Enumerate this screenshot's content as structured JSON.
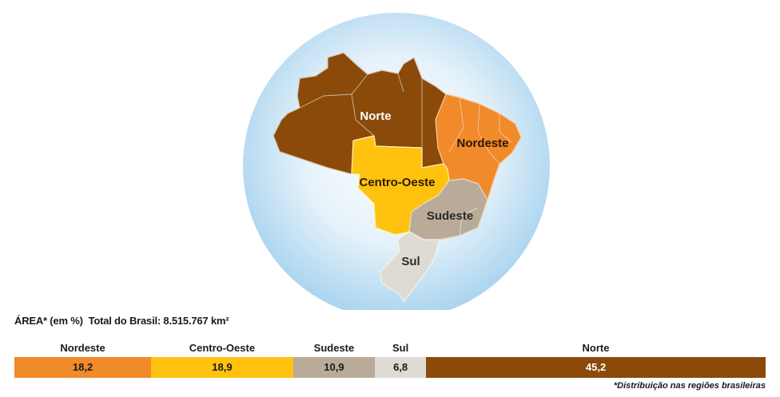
{
  "chart_data": {
    "type": "bar",
    "title": "ÁREA* (em %)",
    "subtitle": "Total do Brasil: 8.515.767 km²",
    "categories": [
      "Nordeste",
      "Centro-Oeste",
      "Sudeste",
      "Sul",
      "Norte"
    ],
    "values": [
      18.2,
      18.9,
      10.9,
      6.8,
      45.2
    ],
    "value_labels": [
      "18,2",
      "18,9",
      "10,9",
      "6,8",
      "45,2"
    ],
    "colors": [
      "#f08a2a",
      "#ffc20e",
      "#b9ab98",
      "#dedbd2",
      "#8b4a0a"
    ],
    "text_colors": [
      "#1a1a1a",
      "#1a1a1a",
      "#1a1a1a",
      "#1a1a1a",
      "#ffffff"
    ],
    "footnote": "*Distribuição nas regiões brasileiras",
    "stacked": true,
    "grid": false,
    "legend": "none"
  },
  "map": {
    "labels": {
      "norte": "Norte",
      "nordeste": "Nordeste",
      "centro_oeste": "Centro-Oeste",
      "sudeste": "Sudeste",
      "sul": "Sul"
    },
    "colors": {
      "norte": "#8b4a0a",
      "nordeste": "#f08a2a",
      "centro_oeste": "#ffc20e",
      "sudeste": "#b9ab98",
      "sul": "#dedbd2",
      "globe": "#a9d4ef"
    }
  }
}
